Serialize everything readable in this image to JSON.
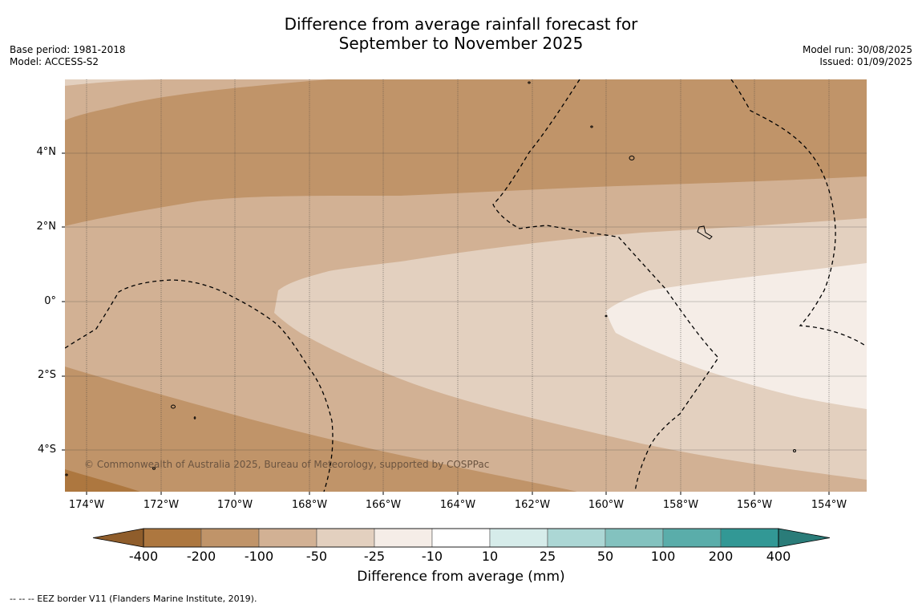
{
  "title": {
    "line1": "Difference from average rainfall forecast for",
    "line2": "September to November 2025"
  },
  "meta_left": {
    "base_period": "Base period: 1981-2018",
    "model": "Model: ACCESS-S2"
  },
  "meta_right": {
    "model_run": "Model run: 30/08/2025",
    "issued": "Issued: 01/09/2025"
  },
  "map": {
    "lat_labels": [
      "4°N",
      "2°N",
      "0°",
      "2°S",
      "4°S"
    ],
    "lon_labels": [
      "174°W",
      "172°W",
      "170°W",
      "168°W",
      "166°W",
      "164°W",
      "162°W",
      "160°W",
      "158°W",
      "156°W",
      "154°W"
    ],
    "copyright": "© Commonwealth of Australia 2025, Bureau of Meteorology, supported by COSPPac",
    "band_colors": {
      "dry_200_100": "#c09469",
      "dry_100_50": "#d2b194",
      "dry_50_25": "#e3d0bf",
      "dry_25_10": "#f5ede7",
      "dry_400_200": "#ad773f"
    }
  },
  "colorbar": {
    "ticks": [
      "-400",
      "-200",
      "-100",
      "-50",
      "-25",
      "-10",
      "10",
      "25",
      "50",
      "100",
      "200",
      "400"
    ],
    "colors": [
      "#ad773f",
      "#c09469",
      "#d2b194",
      "#e3d0bf",
      "#f5ede7",
      "#ffffff",
      "#d6ecea",
      "#acd7d5",
      "#83c2bf",
      "#5aadaa",
      "#329895"
    ],
    "under_color": "#8f5d2b",
    "over_color": "#2a7c79",
    "label": "Difference from average (mm)"
  },
  "footnote": "--  --  -- EEZ border V11 (Flanders Marine Institute, 2019)."
}
